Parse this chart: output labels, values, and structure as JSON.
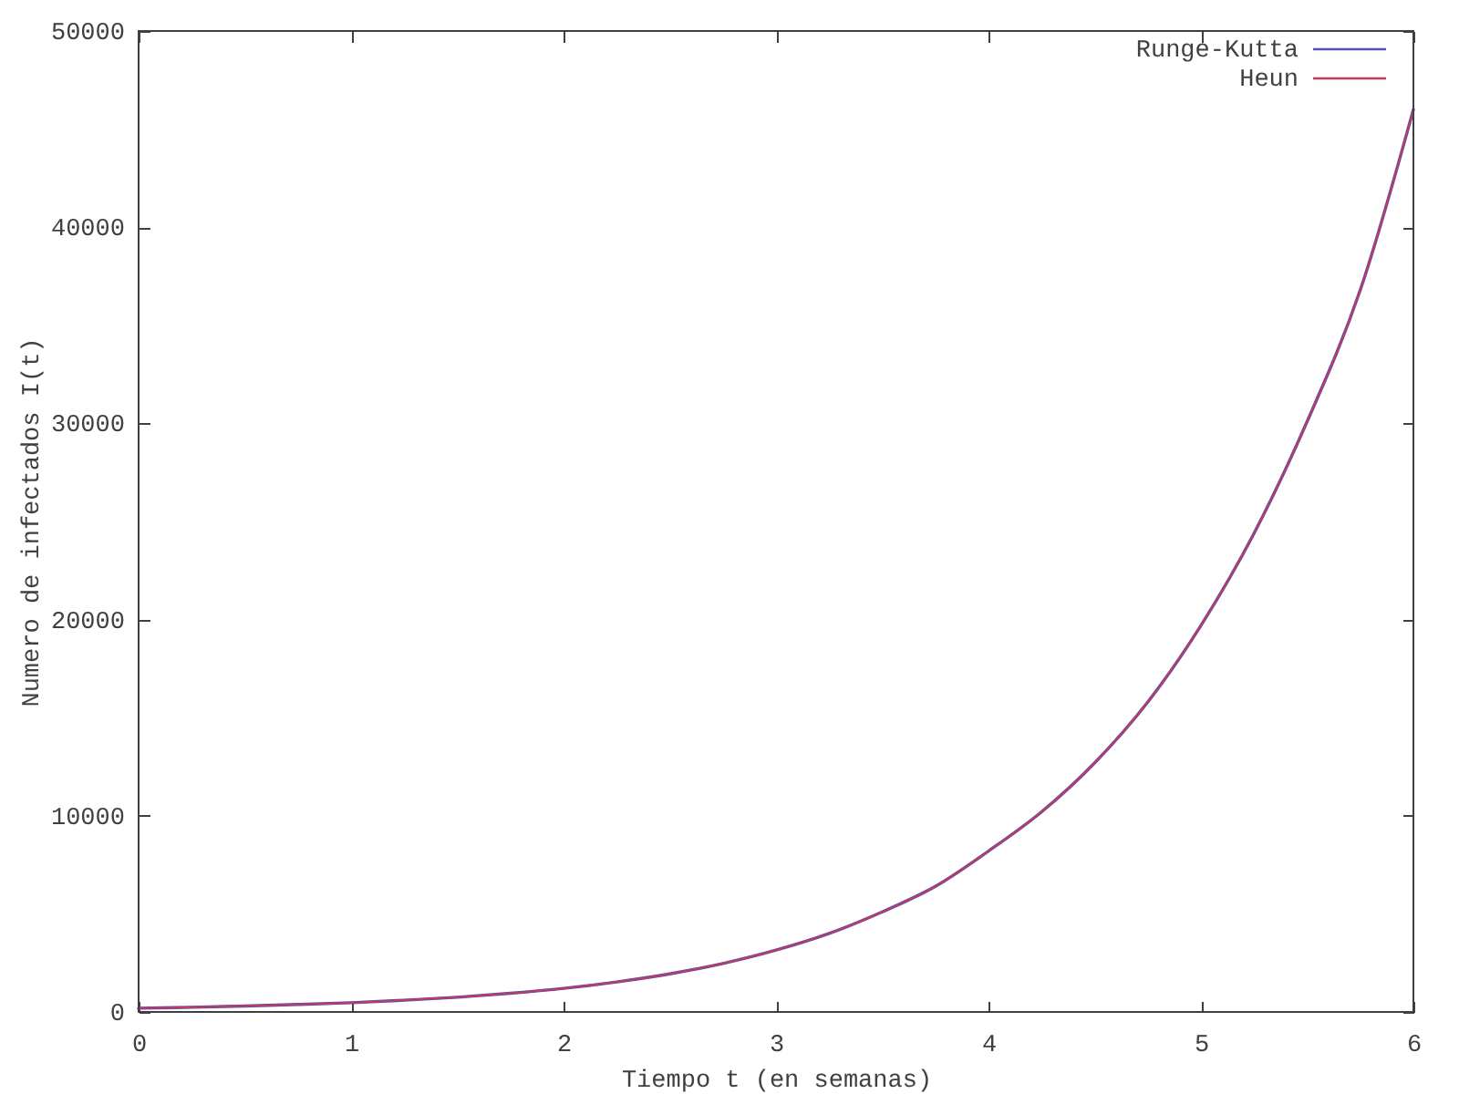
{
  "chart_data": {
    "type": "line",
    "xlabel": "Tiempo t (en semanas)",
    "ylabel": "Numero de infectados I(t)",
    "x": [
      0,
      0.25,
      0.5,
      0.75,
      1,
      1.25,
      1.5,
      1.75,
      2,
      2.25,
      2.5,
      2.75,
      3,
      3.25,
      3.5,
      3.75,
      4,
      4.25,
      4.5,
      4.75,
      5,
      5.25,
      5.5,
      5.75,
      6
    ],
    "series": [
      {
        "name": "Runge-Kutta",
        "color": "#5050b8",
        "values": [
          190,
          240,
          300,
          380,
          470,
          600,
          750,
          950,
          1200,
          1530,
          1940,
          2470,
          3150,
          4000,
          5100,
          6400,
          8200,
          10200,
          12700,
          15800,
          19700,
          24400,
          30100,
          36800,
          46000
        ]
      },
      {
        "name": "Heun",
        "color": "#c03c5a",
        "values": [
          190,
          240,
          300,
          380,
          470,
          600,
          750,
          950,
          1200,
          1530,
          1940,
          2470,
          3150,
          4000,
          5100,
          6400,
          8200,
          10200,
          12700,
          15800,
          19700,
          24400,
          30100,
          36800,
          46000
        ]
      }
    ],
    "xlim": [
      0,
      6
    ],
    "ylim": [
      0,
      50000
    ],
    "xticks": [
      0,
      1,
      2,
      3,
      4,
      5,
      6
    ],
    "yticks": [
      0,
      10000,
      20000,
      30000,
      40000,
      50000
    ],
    "legend": "top right",
    "line_style": "solid"
  }
}
